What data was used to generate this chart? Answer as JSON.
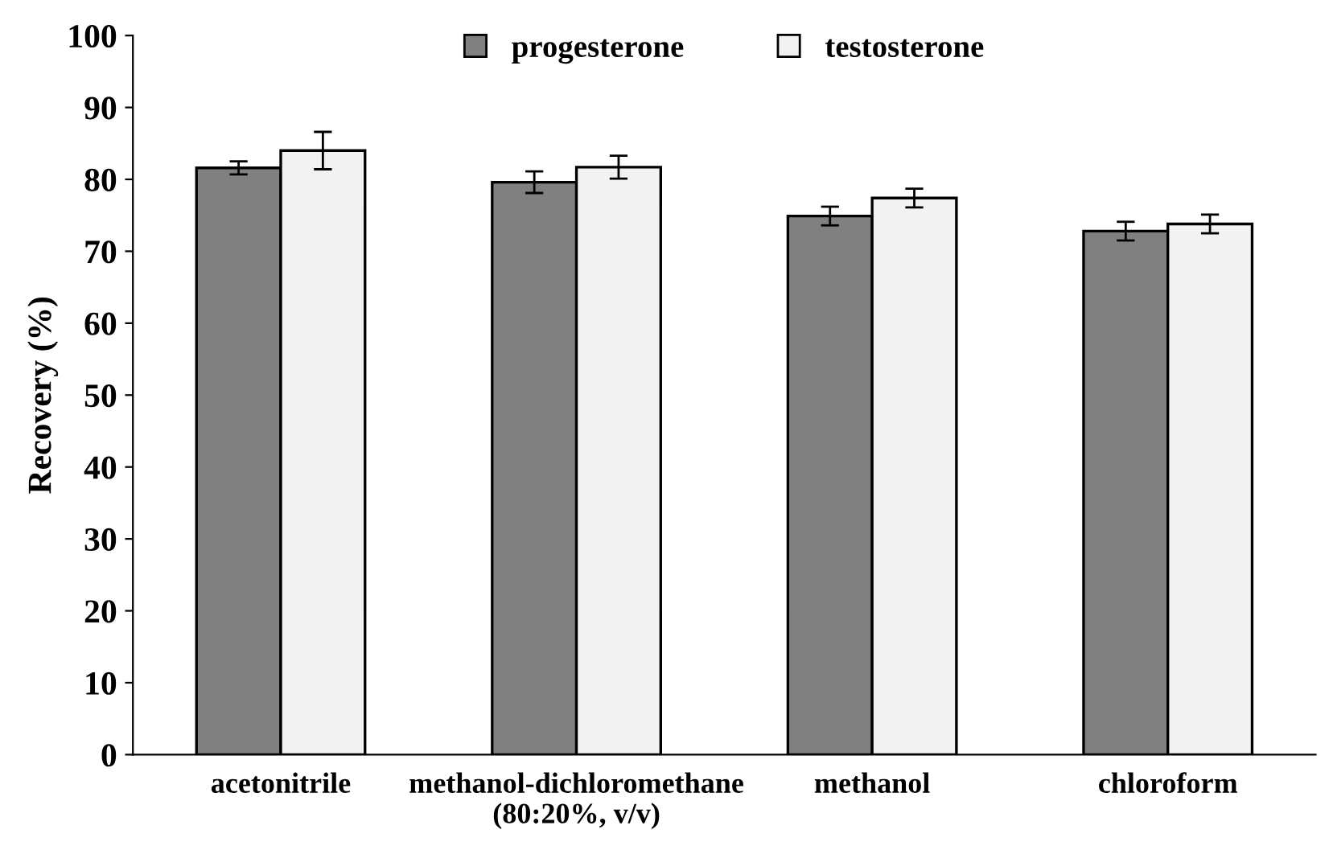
{
  "chart_data": {
    "type": "bar",
    "ylabel": "Recovery (%)",
    "categories": [
      "acetonitrile",
      "methanol-dichloromethane\n(80:20%, v/v)",
      "methanol",
      "chloroform"
    ],
    "series": [
      {
        "name": "progesterone",
        "color": "#808080",
        "values": [
          81.6,
          79.6,
          74.9,
          72.8
        ],
        "errors": [
          0.9,
          1.5,
          1.3,
          1.3
        ]
      },
      {
        "name": "testosterone",
        "color": "#f2f2f2",
        "values": [
          84.0,
          81.7,
          77.4,
          73.8
        ],
        "errors": [
          2.6,
          1.6,
          1.3,
          1.3
        ]
      }
    ],
    "ylim": [
      0,
      100
    ],
    "yticks": [
      0,
      10,
      20,
      30,
      40,
      50,
      60,
      70,
      80,
      90,
      100
    ],
    "grid": false,
    "legend": "top"
  }
}
